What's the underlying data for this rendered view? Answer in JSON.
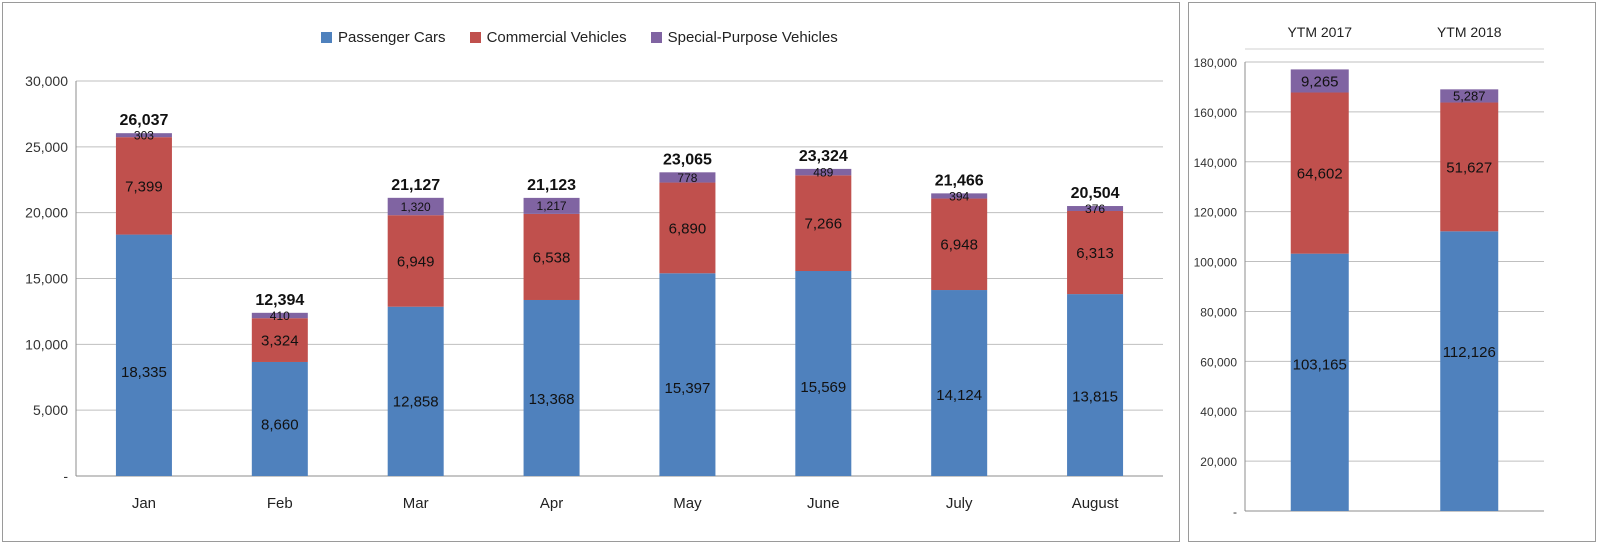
{
  "colors": {
    "passenger": "#4f81bd",
    "commercial": "#c0504d",
    "special": "#8064a2"
  },
  "legend": [
    {
      "name": "Passenger Cars",
      "color": "#4f81bd"
    },
    {
      "name": "Commercial Vehicles",
      "color": "#c0504d"
    },
    {
      "name": "Special-Purpose Vehicles",
      "color": "#8064a2"
    }
  ],
  "chart_data": [
    {
      "type": "bar",
      "stacked": true,
      "categories": [
        "Jan",
        "Feb",
        "Mar",
        "Apr",
        "May",
        "June",
        "July",
        "August"
      ],
      "series": [
        {
          "name": "Passenger Cars",
          "values": [
            18335,
            8660,
            12858,
            13368,
            15397,
            15569,
            14124,
            13815
          ],
          "labels": [
            "18,335",
            "8,660",
            "12,858",
            "13,368",
            "15,397",
            "15,569",
            "14,124",
            "13,815"
          ]
        },
        {
          "name": "Commercial Vehicles",
          "values": [
            7399,
            3324,
            6949,
            6538,
            6890,
            7266,
            6948,
            6313
          ],
          "labels": [
            "7,399",
            "3,324",
            "6,949",
            "6,538",
            "6,890",
            "7,266",
            "6,948",
            "6,313"
          ]
        },
        {
          "name": "Special-Purpose Vehicles",
          "values": [
            303,
            410,
            1320,
            1217,
            778,
            489,
            394,
            376
          ],
          "labels": [
            "303",
            "410",
            "1,320",
            "1,217",
            "778",
            "489",
            "394",
            "376"
          ]
        }
      ],
      "totals": [
        "26,037",
        "12,394",
        "21,127",
        "21,123",
        "23,065",
        "23,324",
        "21,466",
        "20,504"
      ],
      "ylim": [
        0,
        30000
      ],
      "yticks": [
        0,
        5000,
        10000,
        15000,
        20000,
        25000,
        30000
      ],
      "ytick_labels": [
        "-",
        "5,000",
        "10,000",
        "15,000",
        "20,000",
        "25,000",
        "30,000"
      ],
      "grid": true,
      "legend": "top-center"
    },
    {
      "type": "bar",
      "stacked": true,
      "categories": [
        "YTM 2017",
        "YTM 2018"
      ],
      "category_position": "top",
      "series": [
        {
          "name": "Passenger Cars",
          "values": [
            103165,
            112126
          ],
          "labels": [
            "103,165",
            "112,126"
          ]
        },
        {
          "name": "Commercial Vehicles",
          "values": [
            64602,
            51627
          ],
          "labels": [
            "64,602",
            "51,627"
          ]
        },
        {
          "name": "Special-Purpose Vehicles",
          "values": [
            9265,
            5287
          ],
          "labels": [
            "9,265",
            "5,287"
          ]
        }
      ],
      "ylim": [
        0,
        180000
      ],
      "yticks": [
        0,
        20000,
        40000,
        60000,
        80000,
        100000,
        120000,
        140000,
        160000,
        180000
      ],
      "ytick_labels": [
        "-",
        "20,000",
        "40,000",
        "60,000",
        "80,000",
        "100,000",
        "120,000",
        "140,000",
        "160,000",
        "180,000"
      ],
      "grid": true
    }
  ]
}
